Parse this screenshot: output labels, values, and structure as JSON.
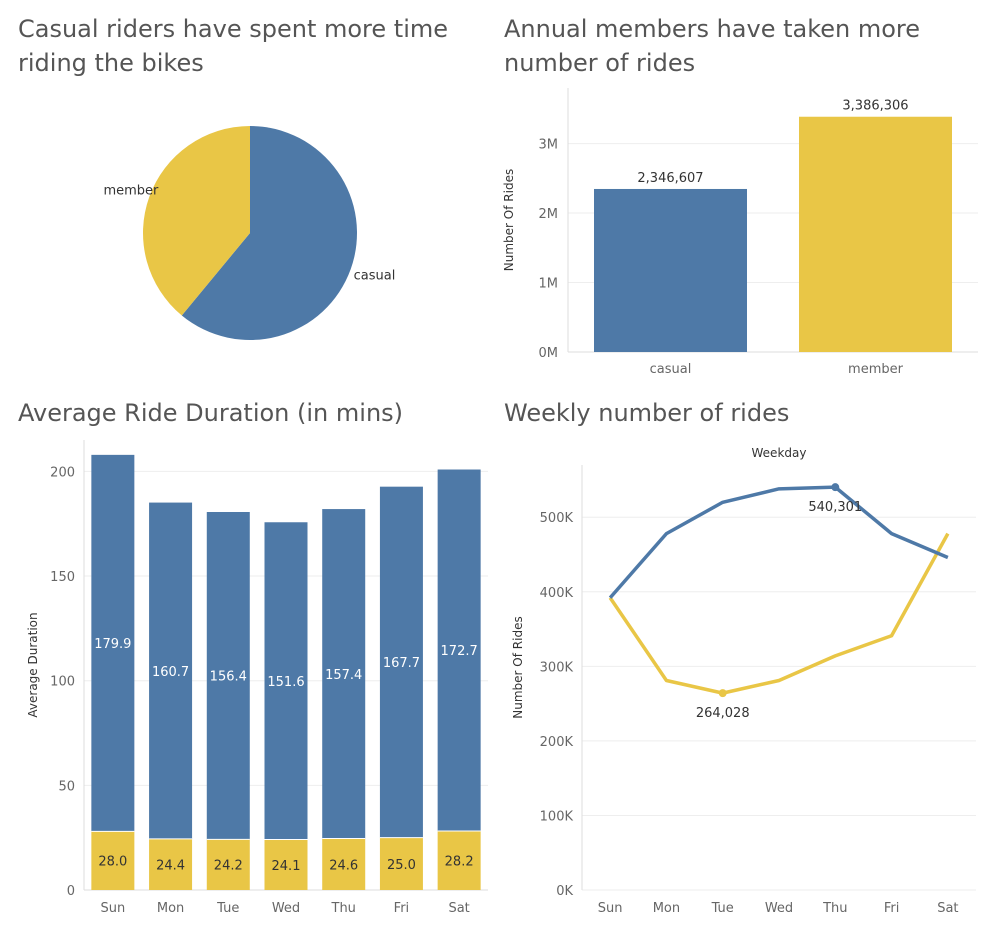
{
  "colors": {
    "casual": "#4e79a7",
    "member": "#e9c646",
    "grid": "#eeeeee",
    "axis": "#dddddd"
  },
  "chart_data": [
    {
      "type": "pie",
      "title": "Casual riders have spent more time\nriding the bikes",
      "labels": [
        "casual",
        "member"
      ],
      "values": [
        61,
        39
      ]
    },
    {
      "type": "bar",
      "title": "Annual members have taken more\nnumber of rides",
      "categories": [
        "casual",
        "member"
      ],
      "values": [
        2346607,
        3386306
      ],
      "data_labels": [
        "2,346,607",
        "3,386,306"
      ],
      "ylabel": "Number Of Rides",
      "yticks": [
        0,
        1000000,
        2000000,
        3000000
      ],
      "ytick_labels": [
        "0M",
        "1M",
        "2M",
        "3M"
      ],
      "ylim": [
        0,
        3800000
      ]
    },
    {
      "type": "bar",
      "stacked": true,
      "title": "Average Ride Duration (in mins)",
      "categories": [
        "Sun",
        "Mon",
        "Tue",
        "Wed",
        "Thu",
        "Fri",
        "Sat"
      ],
      "series": [
        {
          "values": [
            28.0,
            24.4,
            24.2,
            24.1,
            24.6,
            25.0,
            28.2
          ],
          "labels": [
            "28.0",
            "24.4",
            "24.2",
            "24.1",
            "24.6",
            "25.0",
            "28.2"
          ]
        },
        {
          "values": [
            179.9,
            160.7,
            156.4,
            151.6,
            157.4,
            167.7,
            172.7
          ],
          "labels": [
            "179.9",
            "160.7",
            "156.4",
            "151.6",
            "157.4",
            "167.7",
            "172.7"
          ]
        }
      ],
      "ylabel": "Average Duration",
      "yticks": [
        0,
        50,
        100,
        150,
        200
      ],
      "ytick_labels": [
        "0",
        "50",
        "100",
        "150",
        "200"
      ],
      "ylim": [
        0,
        215
      ]
    },
    {
      "type": "line",
      "title": "Weekly number of rides",
      "xlabel": "Weekday",
      "categories": [
        "Sun",
        "Mon",
        "Tue",
        "Wed",
        "Thu",
        "Fri",
        "Sat"
      ],
      "series": [
        {
          "values": [
            392000,
            478000,
            520000,
            538000,
            540301,
            478000,
            446000
          ]
        },
        {
          "values": [
            392000,
            281000,
            264028,
            281000,
            314000,
            341000,
            478000
          ]
        }
      ],
      "annotations": [
        {
          "series": 0,
          "index": 4,
          "text": "540,301"
        },
        {
          "series": 1,
          "index": 2,
          "text": "264,028"
        }
      ],
      "ylabel": "Number Of Rides",
      "yticks": [
        0,
        100000,
        200000,
        300000,
        400000,
        500000
      ],
      "ytick_labels": [
        "0K",
        "100K",
        "200K",
        "300K",
        "400K",
        "500K"
      ],
      "ylim": [
        0,
        570000
      ]
    }
  ]
}
